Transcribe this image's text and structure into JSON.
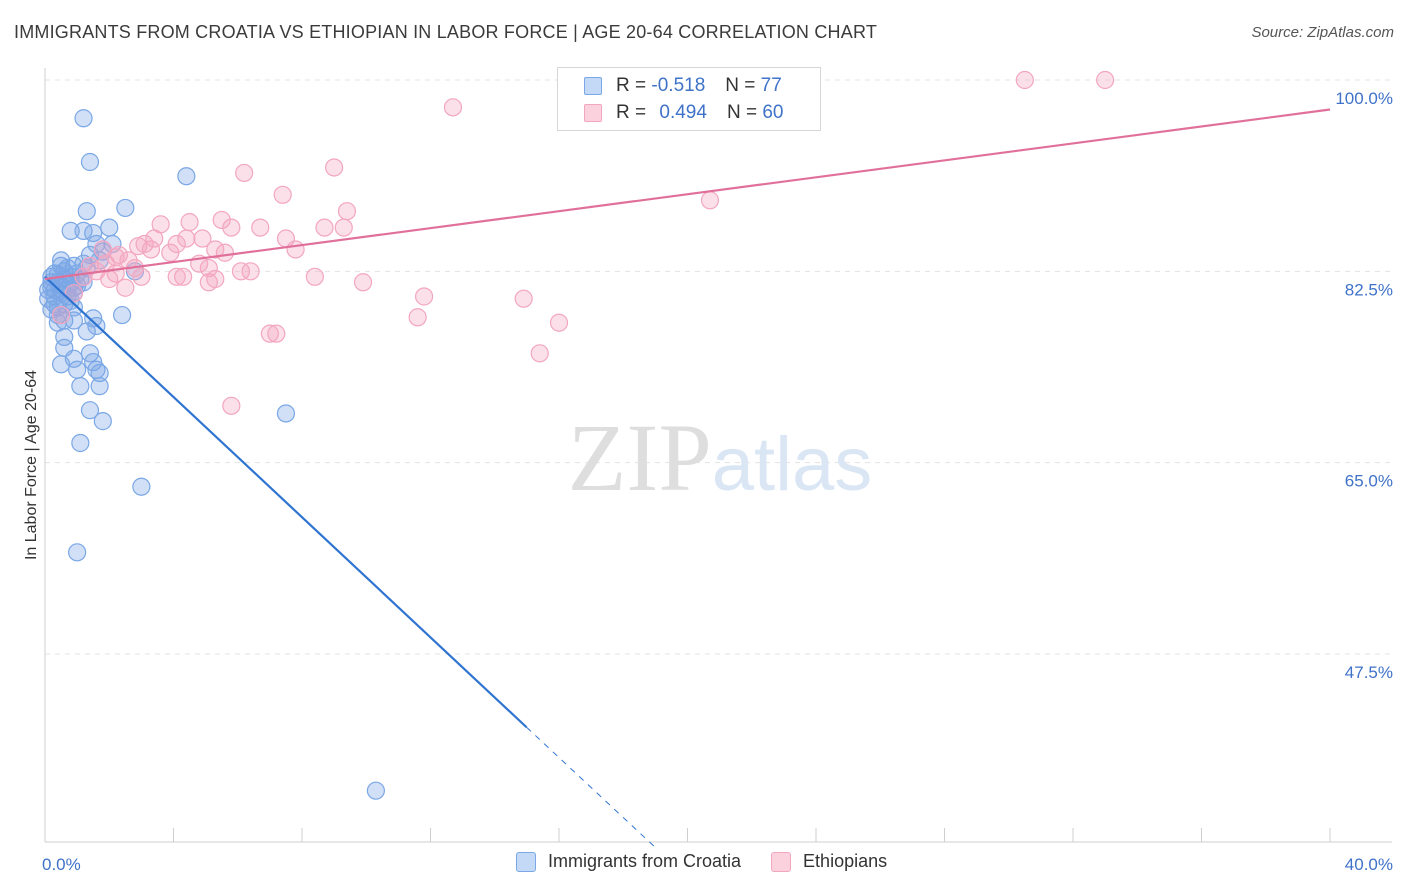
{
  "header": {
    "title": "IMMIGRANTS FROM CROATIA VS ETHIOPIAN IN LABOR FORCE | AGE 20-64 CORRELATION CHART",
    "source": "Source: ZipAtlas.com"
  },
  "watermark": "ZIPatlas",
  "legend": {
    "rows": [
      {
        "r_label": "R =",
        "r_value": "-0.518",
        "n_label": "N =",
        "n_value": "77"
      },
      {
        "r_label": "R =",
        "r_value": "0.494",
        "n_label": "N =",
        "n_value": "60"
      }
    ]
  },
  "chart_data": {
    "type": "scatter",
    "title": "IMMIGRANTS FROM CROATIA VS ETHIOPIAN IN LABOR FORCE | AGE 20-64 CORRELATION CHART",
    "xlabel": "",
    "ylabel": "In Labor Force | Age 20-64",
    "xlim": [
      0,
      40
    ],
    "ylim": [
      32,
      102
    ],
    "x_tick_labels": [
      {
        "value": 0,
        "label": "0.0%"
      },
      {
        "value": 40,
        "label": "40.0%"
      }
    ],
    "y_tick_labels": [
      {
        "value": 100,
        "label": "100.0%"
      },
      {
        "value": 82.5,
        "label": "82.5%"
      },
      {
        "value": 65,
        "label": "65.0%"
      },
      {
        "value": 47.5,
        "label": "47.5%"
      }
    ],
    "grid": "horizontal-dashed",
    "legend_position": "top-center",
    "colors": {
      "series1": "#7aa7e6",
      "series1_line": "#2f74d0",
      "series2": "#f3a6bf",
      "series2_line": "#e0709a",
      "tick": "#3f72c8"
    },
    "series": [
      {
        "name": "Immigrants from Croatia",
        "r": -0.518,
        "n": 77,
        "trend": {
          "x0": 0,
          "y0": 82.0,
          "x1": 14.99,
          "y1": 40.8,
          "dash_to_x": 19.0,
          "dash_to_y": 29.8
        },
        "points": [
          [
            1.2,
            96.5
          ],
          [
            1.4,
            92.5
          ],
          [
            4.4,
            91.2
          ],
          [
            1.3,
            88.0
          ],
          [
            2.5,
            88.3
          ],
          [
            0.8,
            86.2
          ],
          [
            1.2,
            86.2
          ],
          [
            2.0,
            86.5
          ],
          [
            1.5,
            86.0
          ],
          [
            1.6,
            85.0
          ],
          [
            2.1,
            85.0
          ],
          [
            0.3,
            82.3
          ],
          [
            0.5,
            83.0
          ],
          [
            0.7,
            82.8
          ],
          [
            0.9,
            83.0
          ],
          [
            1.2,
            83.2
          ],
          [
            1.4,
            84.0
          ],
          [
            1.7,
            83.5
          ],
          [
            2.8,
            82.5
          ],
          [
            0.2,
            81.5
          ],
          [
            0.4,
            81.5
          ],
          [
            0.6,
            81.8
          ],
          [
            0.8,
            81.5
          ],
          [
            1.0,
            81.2
          ],
          [
            1.1,
            81.8
          ],
          [
            0.1,
            80.8
          ],
          [
            0.3,
            80.8
          ],
          [
            0.5,
            80.5
          ],
          [
            0.7,
            80.8
          ],
          [
            0.9,
            81.0
          ],
          [
            0.1,
            80.0
          ],
          [
            0.3,
            79.5
          ],
          [
            0.6,
            79.5
          ],
          [
            0.8,
            79.8
          ],
          [
            0.2,
            79.0
          ],
          [
            0.4,
            78.5
          ],
          [
            0.6,
            78.0
          ],
          [
            0.4,
            77.8
          ],
          [
            0.9,
            78.0
          ],
          [
            1.5,
            78.2
          ],
          [
            1.6,
            77.5
          ],
          [
            2.4,
            78.5
          ],
          [
            0.6,
            76.5
          ],
          [
            1.3,
            77.0
          ],
          [
            0.6,
            75.5
          ],
          [
            1.4,
            75.0
          ],
          [
            0.9,
            74.5
          ],
          [
            1.5,
            74.2
          ],
          [
            0.5,
            74.0
          ],
          [
            1.0,
            73.5
          ],
          [
            1.6,
            73.5
          ],
          [
            1.7,
            73.2
          ],
          [
            1.1,
            72.0
          ],
          [
            1.7,
            72.0
          ],
          [
            1.4,
            69.8
          ],
          [
            1.8,
            68.8
          ],
          [
            7.5,
            69.5
          ],
          [
            1.1,
            66.8
          ],
          [
            3.0,
            62.8
          ],
          [
            1.0,
            56.8
          ],
          [
            10.3,
            35.0
          ],
          [
            0.2,
            82.0
          ],
          [
            0.4,
            82.2
          ],
          [
            0.6,
            82.5
          ],
          [
            0.8,
            82.0
          ],
          [
            1.0,
            82.3
          ],
          [
            0.2,
            81.0
          ],
          [
            0.5,
            81.2
          ],
          [
            0.9,
            80.5
          ],
          [
            0.3,
            80.2
          ],
          [
            0.7,
            80.2
          ],
          [
            1.2,
            81.5
          ],
          [
            0.4,
            79.2
          ],
          [
            0.9,
            79.2
          ],
          [
            1.3,
            82.8
          ],
          [
            0.5,
            83.5
          ],
          [
            1.8,
            84.3
          ]
        ]
      },
      {
        "name": "Ethiopians",
        "r": 0.494,
        "n": 60,
        "trend": {
          "x0": 0,
          "y0": 81.8,
          "x1": 40,
          "y1": 97.3
        },
        "points": [
          [
            30.5,
            100.0
          ],
          [
            33.0,
            100.0
          ],
          [
            12.7,
            97.5
          ],
          [
            9.0,
            92.0
          ],
          [
            6.2,
            91.5
          ],
          [
            7.4,
            89.5
          ],
          [
            20.7,
            89.0
          ],
          [
            9.4,
            88.0
          ],
          [
            5.5,
            87.2
          ],
          [
            3.6,
            86.8
          ],
          [
            4.5,
            87.0
          ],
          [
            5.8,
            86.5
          ],
          [
            6.7,
            86.5
          ],
          [
            8.7,
            86.5
          ],
          [
            9.3,
            86.5
          ],
          [
            3.4,
            85.5
          ],
          [
            4.1,
            85.0
          ],
          [
            4.4,
            85.5
          ],
          [
            4.9,
            85.5
          ],
          [
            7.5,
            85.5
          ],
          [
            2.9,
            84.8
          ],
          [
            3.3,
            84.5
          ],
          [
            2.3,
            84.0
          ],
          [
            3.9,
            84.2
          ],
          [
            5.3,
            84.5
          ],
          [
            5.6,
            84.2
          ],
          [
            7.8,
            84.5
          ],
          [
            1.9,
            83.2
          ],
          [
            2.6,
            83.5
          ],
          [
            4.8,
            83.2
          ],
          [
            1.4,
            83.0
          ],
          [
            2.8,
            82.8
          ],
          [
            5.1,
            82.8
          ],
          [
            6.1,
            82.5
          ],
          [
            6.4,
            82.5
          ],
          [
            2.2,
            82.3
          ],
          [
            3.0,
            82.0
          ],
          [
            4.1,
            82.0
          ],
          [
            4.3,
            82.0
          ],
          [
            2.0,
            81.8
          ],
          [
            5.1,
            81.5
          ],
          [
            5.3,
            81.8
          ],
          [
            8.4,
            82.0
          ],
          [
            9.9,
            81.5
          ],
          [
            2.5,
            81.0
          ],
          [
            11.8,
            80.2
          ],
          [
            14.9,
            80.0
          ],
          [
            11.6,
            78.3
          ],
          [
            16.0,
            77.8
          ],
          [
            7.0,
            76.8
          ],
          [
            7.2,
            76.8
          ],
          [
            15.4,
            75.0
          ],
          [
            5.8,
            70.2
          ],
          [
            0.5,
            78.5
          ],
          [
            0.9,
            80.5
          ],
          [
            1.6,
            82.5
          ],
          [
            2.2,
            83.8
          ],
          [
            3.1,
            85.0
          ],
          [
            1.8,
            84.5
          ],
          [
            1.2,
            82.0
          ]
        ]
      }
    ]
  },
  "bottom_legend": {
    "items": [
      {
        "label": "Immigrants from Croatia"
      },
      {
        "label": "Ethiopians"
      }
    ]
  }
}
